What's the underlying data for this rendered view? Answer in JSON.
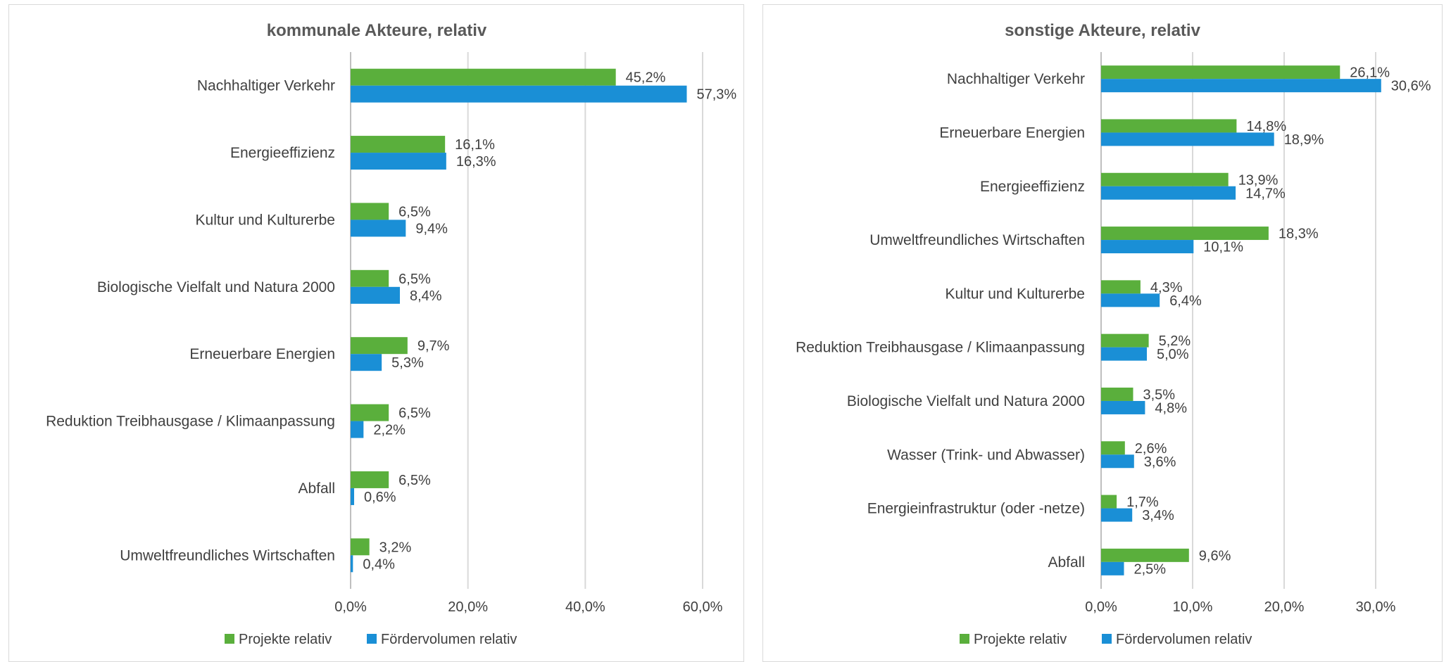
{
  "colors": {
    "projekte": "#5aaf3c",
    "foerdervolumen": "#1a8fd6"
  },
  "chart_data": [
    {
      "type": "bar",
      "orientation": "horizontal",
      "title": "kommunale Akteure, relativ",
      "categories": [
        "Nachhaltiger Verkehr",
        "Energieeffizienz",
        "Kultur und Kulturerbe",
        "Biologische Vielfalt und Natura 2000",
        "Erneuerbare Energien",
        "Reduktion Treibhausgase / Klimaanpassung",
        "Abfall",
        "Umweltfreundliches Wirtschaften"
      ],
      "series": [
        {
          "name": "Projekte relativ",
          "values": [
            45.2,
            16.1,
            6.5,
            6.5,
            9.7,
            6.5,
            6.5,
            3.2
          ],
          "labels": [
            "45,2%",
            "16,1%",
            "6,5%",
            "6,5%",
            "9,7%",
            "6,5%",
            "6,5%",
            "3,2%"
          ]
        },
        {
          "name": "Fördervolumen relativ",
          "values": [
            57.3,
            16.3,
            9.4,
            8.4,
            5.3,
            2.2,
            0.6,
            0.4
          ],
          "labels": [
            "57,3%",
            "16,3%",
            "9,4%",
            "8,4%",
            "5,3%",
            "2,2%",
            "0,6%",
            "0,4%"
          ]
        }
      ],
      "xlim": [
        0,
        60
      ],
      "ticks": [
        0,
        20,
        40,
        60
      ],
      "tick_labels": [
        "0,0%",
        "20,0%",
        "40,0%",
        "60,0%"
      ],
      "grid": true,
      "legend_position": "bottom"
    },
    {
      "type": "bar",
      "orientation": "horizontal",
      "title": "sonstige Akteure, relativ",
      "categories": [
        "Nachhaltiger Verkehr",
        "Erneuerbare Energien",
        "Energieeffizienz",
        "Umweltfreundliches Wirtschaften",
        "Kultur und Kulturerbe",
        "Reduktion Treibhausgase / Klimaanpassung",
        "Biologische Vielfalt und Natura 2000",
        "Wasser (Trink- und Abwasser)",
        "Energieinfrastruktur (oder -netze)",
        "Abfall"
      ],
      "series": [
        {
          "name": "Projekte relativ",
          "values": [
            26.1,
            14.8,
            13.9,
            18.3,
            4.3,
            5.2,
            3.5,
            2.6,
            1.7,
            9.6
          ],
          "labels": [
            "26,1%",
            "14,8%",
            "13,9%",
            "18,3%",
            "4,3%",
            "5,2%",
            "3,5%",
            "2,6%",
            "1,7%",
            "9,6%"
          ]
        },
        {
          "name": "Fördervolumen relativ",
          "values": [
            30.6,
            18.9,
            14.7,
            10.1,
            6.4,
            5.0,
            4.8,
            3.6,
            3.4,
            2.5
          ],
          "labels": [
            "30,6%",
            "18,9%",
            "14,7%",
            "10,1%",
            "6,4%",
            "5,0%",
            "4,8%",
            "3,6%",
            "3,4%",
            "2,5%"
          ]
        }
      ],
      "xlim": [
        0,
        30
      ],
      "ticks": [
        0,
        10,
        20,
        30
      ],
      "tick_labels": [
        "0,0%",
        "10,0%",
        "20,0%",
        "30,0%"
      ],
      "grid": true,
      "legend_position": "bottom"
    }
  ]
}
